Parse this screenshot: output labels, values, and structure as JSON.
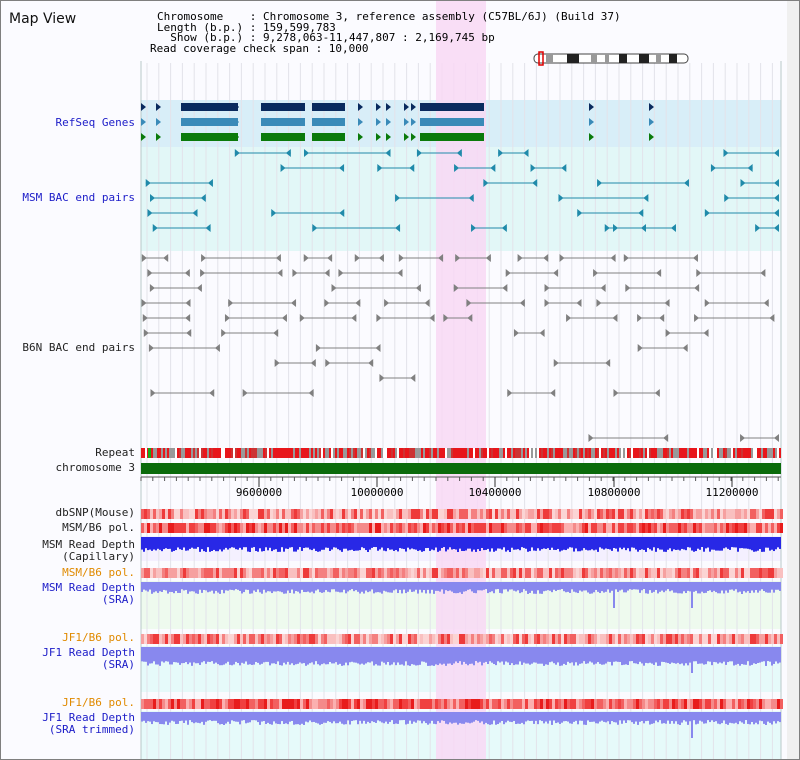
{
  "view": {
    "title": "Map View",
    "info_lines": [
      "Chromosome    : Chromosome 3, reference assembly (C57BL/6J) (Build 37)",
      "Length (b.p.) : 159,599,783",
      "  Show (b.p.) : 9,278,063-11,447,807 : 2,169,745 bp",
      "Read coverage check span : 10,000"
    ],
    "axis_ticks": [
      "9600000",
      "10000000",
      "10400000",
      "10800000",
      "11200000"
    ]
  },
  "tracks": {
    "refseq": "RefSeq Genes",
    "msm_bac": "MSM BAC end pairs",
    "b6n_bac": "B6N BAC end pairs",
    "repeat": "Repeat",
    "chromosome": "chromosome 3",
    "dbsnp": "dbSNP(Mouse)",
    "msm_b6_pol_1": "MSM/B6 pol.",
    "msm_depth_cap_1": "MSM Read Depth",
    "msm_depth_cap_2": "(Capillary)",
    "msm_b6_pol_2": "MSM/B6 pol.",
    "msm_depth_sra_1": "MSM Read Depth",
    "msm_depth_sra_2": "(SRA)",
    "jf1_pol_1": "JF1/B6 pol.",
    "jf1_depth_sra_1": "JF1 Read Depth",
    "jf1_depth_sra_2": "(SRA)",
    "jf1_pol_2": "JF1/B6 pol.",
    "jf1_depth_trim_1": "JF1 Read Depth",
    "jf1_depth_trim_2": "(SRA trimmed)"
  },
  "colors": {
    "highlight": "#f8d8f4",
    "refseq_bg": "#d8eef8",
    "msm_bg": "#e2f7f7",
    "gene_dark": "#0a2a5e",
    "gene_mid": "#3a8ab8",
    "gene_green": "#0b7a0b",
    "bac_msm": "#208aaa",
    "bac_b6n": "#808080",
    "chromosome": "#0b6b0b",
    "repeat_red": "#e8161b",
    "depth_blue": "#2828e6",
    "depth_light": "#8888ee",
    "pol_red": "#f05050"
  }
}
